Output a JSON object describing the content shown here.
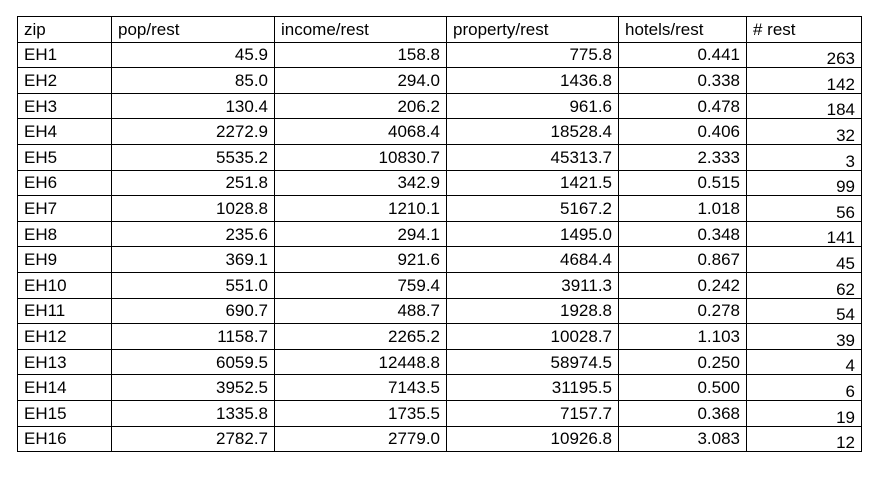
{
  "table": {
    "headers": [
      "zip",
      "pop/rest",
      "income/rest",
      "property/rest",
      "hotels/rest",
      "# rest"
    ],
    "rows": [
      [
        "EH1",
        "45.9",
        "158.8",
        "775.8",
        "0.441",
        "263"
      ],
      [
        "EH2",
        "85.0",
        "294.0",
        "1436.8",
        "0.338",
        "142"
      ],
      [
        "EH3",
        "130.4",
        "206.2",
        "961.6",
        "0.478",
        "184"
      ],
      [
        "EH4",
        "2272.9",
        "4068.4",
        "18528.4",
        "0.406",
        "32"
      ],
      [
        "EH5",
        "5535.2",
        "10830.7",
        "45313.7",
        "2.333",
        "3"
      ],
      [
        "EH6",
        "251.8",
        "342.9",
        "1421.5",
        "0.515",
        "99"
      ],
      [
        "EH7",
        "1028.8",
        "1210.1",
        "5167.2",
        "1.018",
        "56"
      ],
      [
        "EH8",
        "235.6",
        "294.1",
        "1495.0",
        "0.348",
        "141"
      ],
      [
        "EH9",
        "369.1",
        "921.6",
        "4684.4",
        "0.867",
        "45"
      ],
      [
        "EH10",
        "551.0",
        "759.4",
        "3911.3",
        "0.242",
        "62"
      ],
      [
        "EH11",
        "690.7",
        "488.7",
        "1928.8",
        "0.278",
        "54"
      ],
      [
        "EH12",
        "1158.7",
        "2265.2",
        "10028.7",
        "1.103",
        "39"
      ],
      [
        "EH13",
        "6059.5",
        "12448.8",
        "58974.5",
        "0.250",
        "4"
      ],
      [
        "EH14",
        "3952.5",
        "7143.5",
        "31195.5",
        "0.500",
        "6"
      ],
      [
        "EH15",
        "1335.8",
        "1735.5",
        "7157.7",
        "0.368",
        "19"
      ],
      [
        "EH16",
        "2782.7",
        "2779.0",
        "10926.8",
        "3.083",
        "12"
      ]
    ]
  }
}
